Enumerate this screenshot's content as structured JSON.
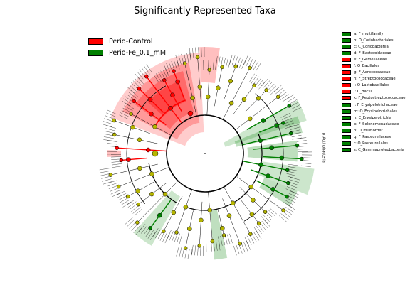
{
  "title": "Significantly Represented Taxa",
  "colors": {
    "control": "#ff0000",
    "treated": "#008000",
    "node": "#b5b500"
  },
  "legend": [
    {
      "label": "Perio-Control",
      "group": "control"
    },
    {
      "label": "Perio-Fe_0.1_mM",
      "group": "treated"
    }
  ],
  "taxa": [
    {
      "key": "a",
      "name": "F_multifamily",
      "group": "treated"
    },
    {
      "key": "b",
      "name": "O_Coriobacteriales",
      "group": "treated"
    },
    {
      "key": "c",
      "name": "C_Coriobacteriia",
      "group": "treated"
    },
    {
      "key": "d",
      "name": "F_Bacteroidaceae",
      "group": "treated"
    },
    {
      "key": "e",
      "name": "F_Gemellaceae",
      "group": "control"
    },
    {
      "key": "f",
      "name": "O_Bacillales",
      "group": "control"
    },
    {
      "key": "g",
      "name": "F_Aerococcaceae",
      "group": "control"
    },
    {
      "key": "h",
      "name": "F_Streptococcaceae",
      "group": "control"
    },
    {
      "key": "i",
      "name": "O_Lactobacillales",
      "group": "control"
    },
    {
      "key": "j",
      "name": "C_Bacilli",
      "group": "control"
    },
    {
      "key": "k",
      "name": "F_Peptostreptococcaceae",
      "group": "control"
    },
    {
      "key": "l",
      "name": "F_Erysipelotrichaceae",
      "group": "treated"
    },
    {
      "key": "m",
      "name": "O_Erysipelotrichales",
      "group": "treated"
    },
    {
      "key": "n",
      "name": "C_Erysipelotrichia",
      "group": "treated"
    },
    {
      "key": "o",
      "name": "F_Selenomonadaceae",
      "group": "treated"
    },
    {
      "key": "p",
      "name": "O_multiorder",
      "group": "treated"
    },
    {
      "key": "q",
      "name": "F_Pasteurellaceae",
      "group": "treated"
    },
    {
      "key": "r",
      "name": "O_Pasteurellales",
      "group": "treated"
    },
    {
      "key": "s",
      "name": "C_Gammaproteobacteria",
      "group": "treated"
    }
  ],
  "sector_labels": [
    {
      "text": "p_Actinobacteria",
      "group": "treated"
    }
  ]
}
